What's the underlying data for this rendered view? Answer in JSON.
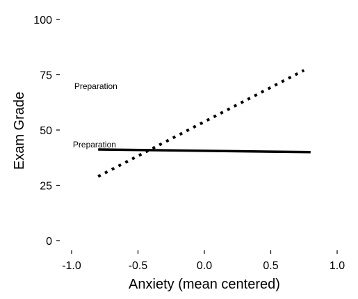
{
  "chart_data": {
    "type": "line",
    "title": "",
    "xlabel": "Anxiety (mean centered)",
    "ylabel": "Exam Grade",
    "xlim": [
      -1.0,
      1.0
    ],
    "ylim": [
      0,
      100
    ],
    "x_ticks": [
      -1.0,
      -0.5,
      0.0,
      0.5,
      1.0
    ],
    "x_tick_labels": [
      "-1.0",
      "-0.5",
      "0.0",
      "0.5",
      "1.0"
    ],
    "y_ticks": [
      0,
      25,
      50,
      75,
      100
    ],
    "y_tick_labels": [
      "0",
      "25",
      "50",
      "75",
      "100"
    ],
    "grid": false,
    "series": [
      {
        "style": "solid",
        "color": "#000000",
        "x": [
          -0.8,
          0.8
        ],
        "y": [
          41.2,
          40.0
        ]
      },
      {
        "style": "dotted",
        "color": "#000000",
        "x": [
          -0.8,
          0.75
        ],
        "y": [
          29.0,
          77.0
        ]
      }
    ],
    "annotations": [
      {
        "text": "Preparation",
        "x": -0.98,
        "y": 68.5
      },
      {
        "text": "Preparation",
        "x": -0.99,
        "y": 42.2
      }
    ]
  }
}
